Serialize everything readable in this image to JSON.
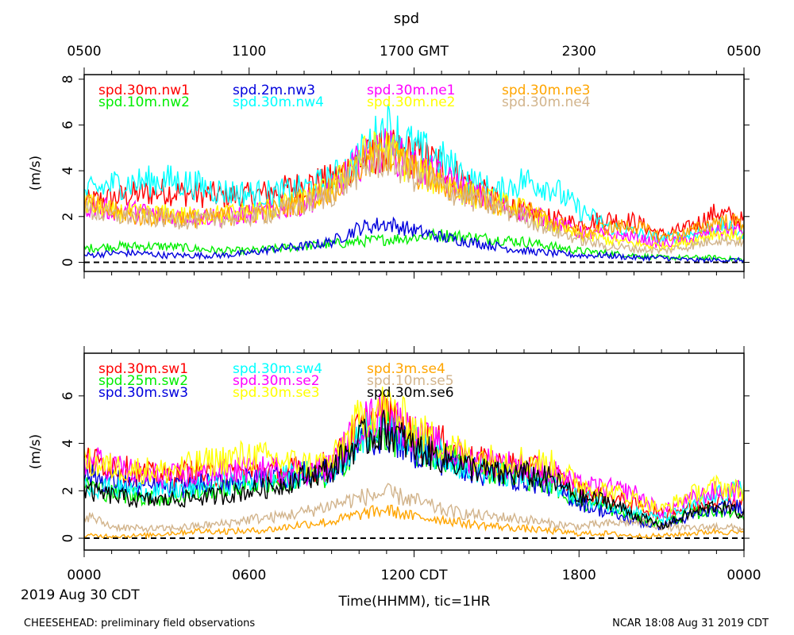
{
  "chart_data": {
    "type": "line",
    "title": "spd",
    "x_units": "hours since 0000 CDT",
    "xlim": [
      0,
      24
    ],
    "top_axis_ticks": [
      {
        "x": 0,
        "label": "0500"
      },
      {
        "x": 6,
        "label": "1100"
      },
      {
        "x": 12,
        "label": "1700 GMT"
      },
      {
        "x": 18,
        "label": "2300"
      },
      {
        "x": 24,
        "label": "0500"
      }
    ],
    "bottom_axis_ticks": [
      {
        "x": 0,
        "label": "0000"
      },
      {
        "x": 6,
        "label": "0600"
      },
      {
        "x": 12,
        "label": "1200 CDT"
      },
      {
        "x": 18,
        "label": "1800"
      },
      {
        "x": 24,
        "label": "0000"
      }
    ],
    "xlabel": "Time(HHMM), tic=1HR",
    "date_label": "2019 Aug 30 CDT",
    "footer_left": "CHEESEHEAD: preliminary field observations",
    "footer_right": "NCAR 18:08 Aug 31 2019 CDT",
    "panels": [
      {
        "ylabel": "(m/s)",
        "ylim": [
          -0.4,
          8.2
        ],
        "yticks": [
          0,
          2,
          4,
          6,
          8
        ],
        "zero_line": true,
        "series": [
          {
            "name": "spd.30m.nw1",
            "color": "#ff0000",
            "values": [
              2.6,
              2.8,
              3.0,
              3.1,
              3.0,
              2.9,
              2.9,
              3.1,
              3.4,
              3.6,
              4.4,
              4.9,
              4.7,
              4.3,
              3.4,
              2.7,
              2.2,
              1.9,
              1.7,
              1.9,
              1.8,
              1.2,
              1.5,
              2.2,
              1.8
            ]
          },
          {
            "name": "spd.10m.nw2",
            "color": "#00ee00",
            "values": [
              0.6,
              0.7,
              0.7,
              0.7,
              0.6,
              0.5,
              0.5,
              0.6,
              0.7,
              0.8,
              0.9,
              1.0,
              1.1,
              1.2,
              1.1,
              1.0,
              0.9,
              0.7,
              0.5,
              0.4,
              0.3,
              0.2,
              0.2,
              0.2,
              0.1
            ]
          },
          {
            "name": "spd.2m.nw3",
            "color": "#0000dd",
            "values": [
              0.3,
              0.4,
              0.4,
              0.3,
              0.3,
              0.3,
              0.4,
              0.6,
              0.7,
              0.9,
              1.5,
              1.7,
              1.4,
              1.1,
              0.9,
              0.7,
              0.5,
              0.4,
              0.3,
              0.3,
              0.2,
              0.2,
              0.1,
              0.1,
              0.1
            ]
          },
          {
            "name": "spd.30m.nw4",
            "color": "#00ffff",
            "values": [
              3.0,
              3.4,
              3.5,
              3.6,
              3.4,
              3.1,
              3.0,
              3.0,
              3.2,
              3.6,
              4.6,
              6.0,
              5.0,
              4.5,
              3.6,
              3.0,
              3.6,
              3.3,
              2.3,
              1.6,
              1.3,
              1.0,
              1.2,
              1.6,
              1.3
            ]
          },
          {
            "name": "spd.30m.ne1",
            "color": "#ff00ff",
            "values": [
              2.5,
              2.3,
              2.2,
              2.0,
              2.0,
              2.0,
              2.1,
              2.3,
              2.6,
              3.1,
              4.4,
              5.0,
              4.2,
              3.7,
              3.1,
              2.5,
              2.2,
              1.8,
              1.3,
              1.2,
              1.1,
              0.8,
              1.0,
              1.4,
              1.4
            ]
          },
          {
            "name": "spd.30m.ne2",
            "color": "#ffff00",
            "values": [
              2.6,
              2.2,
              2.1,
              2.1,
              2.0,
              2.1,
              2.2,
              2.4,
              2.7,
              3.2,
              4.6,
              5.0,
              4.0,
              3.5,
              3.0,
              2.6,
              2.3,
              1.6,
              1.2,
              1.0,
              0.8,
              0.7,
              0.9,
              1.3,
              1.1
            ]
          },
          {
            "name": "spd.30m.ne3",
            "color": "#ffa500",
            "values": [
              2.6,
              2.2,
              2.0,
              2.0,
              1.9,
              2.0,
              2.1,
              2.3,
              2.7,
              3.2,
              4.2,
              4.8,
              4.0,
              3.4,
              3.0,
              2.6,
              2.3,
              1.8,
              1.3,
              1.5,
              1.6,
              1.1,
              1.3,
              1.8,
              1.7
            ]
          },
          {
            "name": "spd.30m.ne4",
            "color": "#d2b48c",
            "values": [
              2.3,
              2.0,
              2.0,
              1.9,
              1.8,
              1.9,
              2.0,
              2.2,
              2.5,
              3.0,
              4.0,
              4.6,
              3.8,
              3.3,
              2.8,
              2.4,
              2.0,
              1.4,
              1.0,
              0.7,
              0.6,
              0.5,
              0.7,
              1.0,
              0.9
            ]
          }
        ]
      },
      {
        "ylabel": "(m/s)",
        "ylim": [
          -0.5,
          7.8
        ],
        "yticks": [
          0,
          2,
          4,
          6
        ],
        "zero_line": true,
        "series": [
          {
            "name": "spd.30m.sw1",
            "color": "#ff0000",
            "values": [
              3.3,
              3.1,
              2.7,
              2.6,
              2.8,
              2.6,
              2.8,
              2.8,
              2.9,
              3.1,
              4.6,
              5.2,
              4.2,
              4.0,
              3.3,
              3.1,
              3.0,
              2.7,
              2.0,
              1.8,
              1.4,
              1.0,
              1.3,
              1.6,
              1.5
            ]
          },
          {
            "name": "spd.25m.sw2",
            "color": "#00ee00",
            "values": [
              2.3,
              1.9,
              1.8,
              1.7,
              1.9,
              2.1,
              2.3,
              2.4,
              2.6,
              2.6,
              4.1,
              4.5,
              3.7,
              3.5,
              3.0,
              2.8,
              2.6,
              2.3,
              1.5,
              1.3,
              0.9,
              0.6,
              1.0,
              1.2,
              1.0
            ]
          },
          {
            "name": "spd.30m.sw3",
            "color": "#0000dd",
            "values": [
              2.7,
              2.4,
              2.2,
              2.1,
              2.2,
              2.4,
              2.5,
              2.6,
              2.7,
              2.8,
              4.0,
              4.5,
              3.7,
              3.3,
              2.9,
              2.6,
              2.5,
              2.2,
              1.5,
              1.1,
              0.7,
              0.5,
              0.9,
              1.2,
              1.4
            ]
          },
          {
            "name": "spd.30m.sw4",
            "color": "#00ffff",
            "values": [
              2.2,
              2.1,
              2.0,
              2.0,
              2.1,
              2.3,
              2.4,
              2.5,
              2.7,
              2.8,
              4.3,
              4.9,
              4.0,
              3.5,
              3.0,
              2.7,
              2.6,
              2.4,
              1.7,
              1.5,
              1.1,
              0.8,
              1.3,
              1.8,
              2.1
            ]
          },
          {
            "name": "spd.30m.se2",
            "color": "#ff00ff",
            "values": [
              3.3,
              3.1,
              2.7,
              2.6,
              2.6,
              2.8,
              2.9,
              2.9,
              2.8,
              3.0,
              4.8,
              5.3,
              4.4,
              3.8,
              3.3,
              3.2,
              3.0,
              2.8,
              2.2,
              2.1,
              1.9,
              1.1,
              1.6,
              2.0,
              2.0
            ]
          },
          {
            "name": "spd.30m.se3",
            "color": "#ffff00",
            "values": [
              3.2,
              3.0,
              2.9,
              2.8,
              3.1,
              3.3,
              3.5,
              3.3,
              3.1,
              3.2,
              5.0,
              5.6,
              4.6,
              4.0,
              3.5,
              3.3,
              3.3,
              3.1,
              2.3,
              2.0,
              1.7,
              1.2,
              1.8,
              2.2,
              2.0
            ]
          },
          {
            "name": "spd.3m.se4",
            "color": "#ffa500",
            "values": [
              0.1,
              0.1,
              0.1,
              0.2,
              0.3,
              0.3,
              0.3,
              0.4,
              0.6,
              0.7,
              1.0,
              1.2,
              0.9,
              0.8,
              0.6,
              0.5,
              0.4,
              0.3,
              0.2,
              0.2,
              0.1,
              0.1,
              0.2,
              0.3,
              0.2
            ]
          },
          {
            "name": "spd.10m.se5",
            "color": "#d2b48c",
            "values": [
              1.0,
              0.5,
              0.4,
              0.4,
              0.5,
              0.6,
              0.8,
              0.9,
              1.1,
              1.4,
              1.7,
              1.9,
              1.6,
              1.2,
              1.0,
              0.9,
              0.8,
              0.6,
              0.5,
              0.6,
              0.7,
              0.5,
              0.4,
              0.5,
              0.4
            ]
          },
          {
            "name": "spd.30m.se6",
            "color": "#000000",
            "values": [
              2.0,
              1.8,
              1.6,
              1.6,
              1.7,
              1.8,
              2.0,
              2.2,
              2.6,
              2.9,
              4.1,
              4.6,
              3.8,
              3.4,
              3.0,
              2.7,
              2.7,
              2.5,
              1.7,
              1.6,
              1.0,
              0.5,
              1.0,
              1.4,
              1.0
            ]
          }
        ]
      }
    ]
  }
}
